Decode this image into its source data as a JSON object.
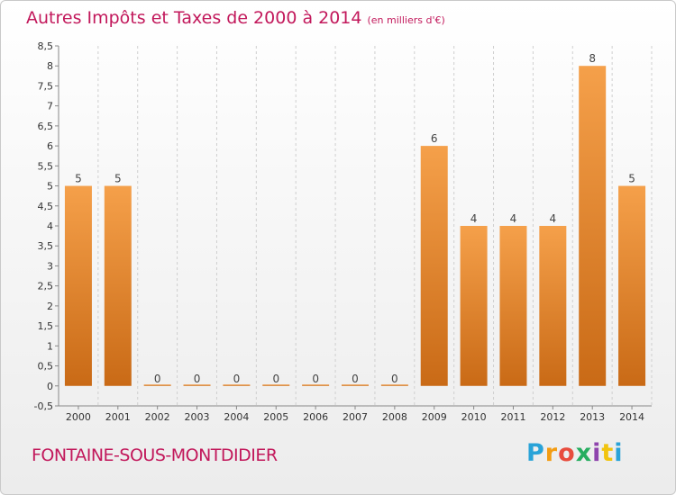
{
  "chart_data": {
    "type": "bar",
    "title": "Autres Impôts et Taxes de 2000 à 2014",
    "unit_label": "(en milliers d'€)",
    "categories": [
      "2000",
      "2001",
      "2002",
      "2003",
      "2004",
      "2005",
      "2006",
      "2007",
      "2008",
      "2009",
      "2010",
      "2011",
      "2012",
      "2013",
      "2014"
    ],
    "values": [
      5,
      5,
      0,
      0,
      0,
      0,
      0,
      0,
      0,
      6,
      4,
      4,
      4,
      8,
      5
    ],
    "data_labels": [
      "5",
      "5",
      "0",
      "0",
      "0",
      "0",
      "0",
      "0",
      "0",
      "6",
      "4",
      "4",
      "4",
      "8",
      "5"
    ],
    "yticks": [
      "-0,5",
      "0",
      "0,5",
      "1",
      "1,5",
      "2",
      "2,5",
      "3",
      "3,5",
      "4",
      "4,5",
      "5",
      "5,5",
      "6",
      "6,5",
      "7",
      "7,5",
      "8",
      "8,5"
    ],
    "ylim": [
      -0.5,
      8.5
    ],
    "grid": "vertical-dashed",
    "bar_color": "#f5a04a",
    "bar_color_dark": "#c96a16"
  },
  "footer": {
    "city": "FONTAINE-SOUS-MONTDIDIER",
    "logo": {
      "letters": [
        "P",
        "r",
        "o",
        "x",
        "i",
        "t",
        "i"
      ],
      "colors": [
        "#29a3d8",
        "#f39c12",
        "#e84c3d",
        "#27ae60",
        "#8e44ad",
        "#f1c40f",
        "#29a3d8"
      ]
    }
  }
}
